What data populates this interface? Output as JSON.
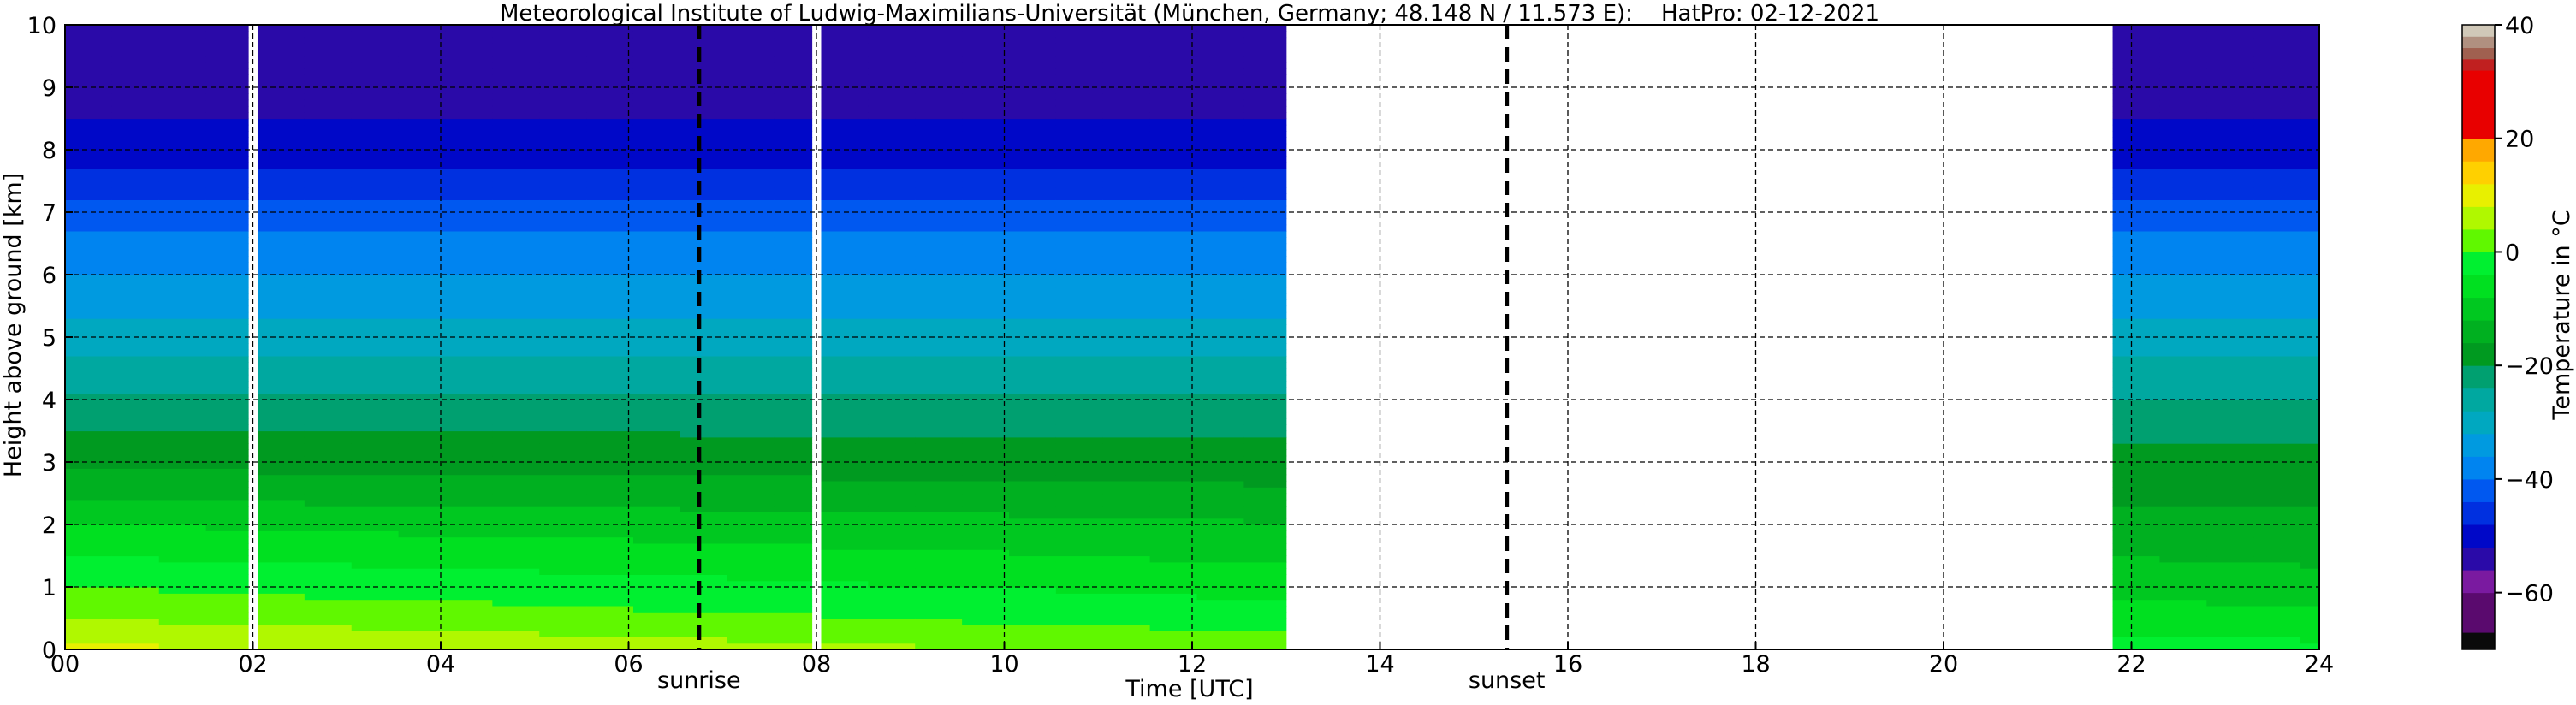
{
  "chart_data": {
    "type": "heatmap",
    "title": "Meteorological Institute of Ludwig-Maximilians-Universität (München, Germany; 48.148 N / 11.573 E):    HatPro: 02-12-2021",
    "xlabel": "Time [UTC]",
    "ylabel": "Height above ground [km]",
    "colorbar_label": "Temperature in °C",
    "xlim": [
      0,
      24
    ],
    "ylim": [
      0,
      10
    ],
    "x_ticks": [
      0,
      2,
      4,
      6,
      8,
      10,
      12,
      14,
      16,
      18,
      20,
      22,
      24
    ],
    "x_tick_labels": [
      "00",
      "02",
      "04",
      "06",
      "08",
      "10",
      "12",
      "14",
      "16",
      "18",
      "20",
      "22",
      "24"
    ],
    "y_ticks": [
      0,
      1,
      2,
      3,
      4,
      5,
      6,
      7,
      8,
      9,
      10
    ],
    "y_tick_labels": [
      "0",
      "1",
      "2",
      "3",
      "4",
      "5",
      "6",
      "7",
      "8",
      "9",
      "10"
    ],
    "grid": true,
    "colorbar": {
      "min": -70,
      "max": 40,
      "ticks": [
        -60,
        -40,
        -20,
        0,
        20,
        40
      ],
      "tick_labels": [
        "−60",
        "−40",
        "−20",
        "0",
        "20",
        "40"
      ],
      "colors": [
        {
          "from": -70,
          "to": -67,
          "color": "#0a0a0a"
        },
        {
          "from": -67,
          "to": -60,
          "color": "#5a0a6e"
        },
        {
          "from": -60,
          "to": -56,
          "color": "#7a1aa0"
        },
        {
          "from": -56,
          "to": -52,
          "color": "#2a0aa8"
        },
        {
          "from": -52,
          "to": -48,
          "color": "#0008c8"
        },
        {
          "from": -48,
          "to": -44,
          "color": "#0030e0"
        },
        {
          "from": -44,
          "to": -40,
          "color": "#0058f0"
        },
        {
          "from": -40,
          "to": -36,
          "color": "#0084f0"
        },
        {
          "from": -36,
          "to": -32,
          "color": "#009ae0"
        },
        {
          "from": -32,
          "to": -28,
          "color": "#00a8c0"
        },
        {
          "from": -28,
          "to": -24,
          "color": "#00a8a0"
        },
        {
          "from": -24,
          "to": -20,
          "color": "#00a070"
        },
        {
          "from": -20,
          "to": -16,
          "color": "#009a20"
        },
        {
          "from": -16,
          "to": -12,
          "color": "#00b020"
        },
        {
          "from": -12,
          "to": -8,
          "color": "#00c820"
        },
        {
          "from": -8,
          "to": -4,
          "color": "#00e020"
        },
        {
          "from": -4,
          "to": 0,
          "color": "#00f030"
        },
        {
          "from": 0,
          "to": 4,
          "color": "#60f800"
        },
        {
          "from": 4,
          "to": 8,
          "color": "#b0f800"
        },
        {
          "from": 8,
          "to": 12,
          "color": "#e8f000"
        },
        {
          "from": 12,
          "to": 16,
          "color": "#ffd000"
        },
        {
          "from": 16,
          "to": 20,
          "color": "#ffa800"
        },
        {
          "from": 20,
          "to": 32,
          "color": "#e80000"
        },
        {
          "from": 32,
          "to": 34,
          "color": "#c02020"
        },
        {
          "from": 34,
          "to": 36,
          "color": "#a06050"
        },
        {
          "from": 36,
          "to": 38,
          "color": "#b09080"
        },
        {
          "from": 38,
          "to": 40,
          "color": "#d0c8b8"
        }
      ]
    },
    "data_segments": [
      {
        "x_start": 0.0,
        "x_end": 1.95
      },
      {
        "x_start": 2.05,
        "x_end": 7.95
      },
      {
        "x_start": 8.05,
        "x_end": 13.0
      },
      {
        "x_start": 21.8,
        "x_end": 24.0
      }
    ],
    "temperature_profile": {
      "height_km": [
        0,
        0.5,
        1,
        1.5,
        2,
        2.5,
        3,
        3.5,
        4,
        4.5,
        5,
        5.5,
        6,
        6.5,
        7,
        7.5,
        8,
        8.5,
        9,
        9.5,
        10
      ],
      "early_temp_c": [
        9,
        4,
        0,
        -4,
        -8,
        -13,
        -17,
        -20,
        -23,
        -27,
        -30,
        -33,
        -36,
        -39,
        -42,
        -46,
        -50,
        -52,
        -53,
        -54,
        -56
      ],
      "late_temp_c": [
        -3,
        -7,
        -10,
        -13,
        -15,
        -17,
        -19,
        -21,
        -24,
        -27,
        -30,
        -33,
        -36,
        -39,
        -42,
        -47,
        -50,
        -52,
        -53,
        -54,
        -55
      ]
    },
    "annotations": [
      {
        "label": "sunrise",
        "x": 6.75
      },
      {
        "label": "sunset",
        "x": 15.35
      }
    ]
  }
}
